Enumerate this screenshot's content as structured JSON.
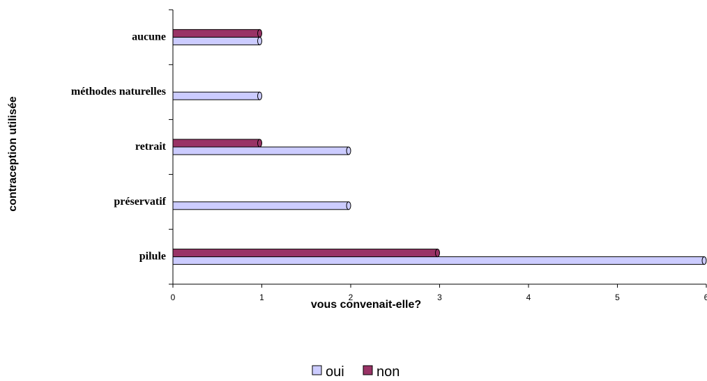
{
  "chart_data": {
    "type": "bar",
    "orientation": "horizontal",
    "categories": [
      "pilule",
      "préservatif",
      "retrait",
      "méthodes naturelles",
      "aucune"
    ],
    "series": [
      {
        "name": "oui",
        "color": "#ccccff",
        "values": [
          6,
          2,
          2,
          1,
          1
        ]
      },
      {
        "name": "non",
        "color": "#993366",
        "values": [
          3,
          null,
          1,
          null,
          1
        ]
      }
    ],
    "xlabel": "vous convenait-elle?",
    "ylabel": "contraception utilisée",
    "xlim": [
      0,
      6
    ],
    "xticks": [
      "0",
      "1",
      "2",
      "3",
      "4",
      "5",
      "6"
    ],
    "grid": false,
    "legend": "bottom-center"
  }
}
